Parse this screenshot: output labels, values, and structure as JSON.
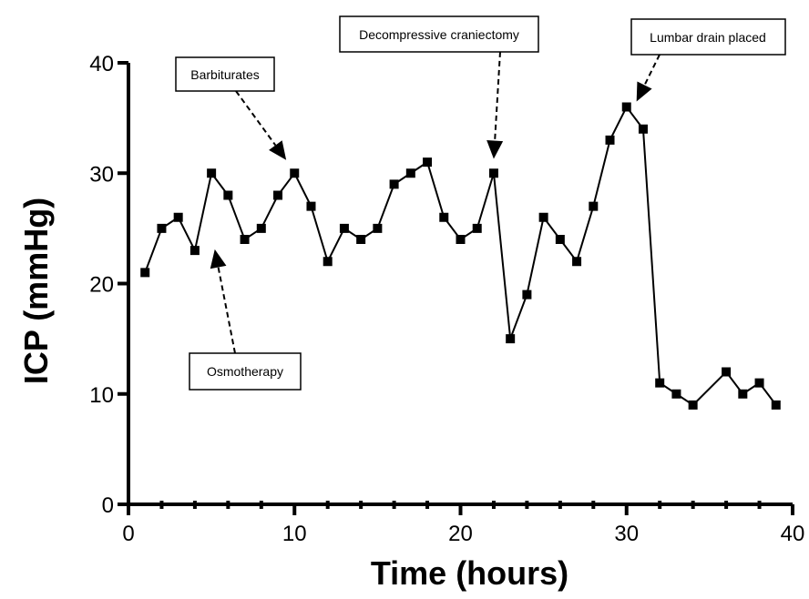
{
  "chart_data": {
    "type": "line",
    "title": "",
    "xlabel": "Time (hours)",
    "ylabel": "ICP (mmHg)",
    "xlim": [
      0,
      40
    ],
    "ylim": [
      0,
      40
    ],
    "xticks": [
      0,
      10,
      20,
      30,
      40
    ],
    "yticks": [
      0,
      10,
      20,
      30,
      40
    ],
    "grid": false,
    "colors": {
      "line": "#000000",
      "marker": "#000000"
    },
    "series": [
      {
        "name": "ICP",
        "x": [
          1,
          2,
          3,
          4,
          5,
          6,
          7,
          8,
          9,
          10,
          11,
          12,
          13,
          14,
          15,
          16,
          17,
          18,
          19,
          20,
          21,
          22,
          23,
          24,
          25,
          26,
          27,
          28,
          29,
          30,
          31,
          32,
          33,
          34,
          36,
          37,
          38,
          39
        ],
        "y": [
          21,
          25,
          26,
          23,
          30,
          28,
          24,
          25,
          28,
          30,
          27,
          22,
          25,
          24,
          25,
          29,
          30,
          31,
          26,
          24,
          25,
          30,
          15,
          19,
          26,
          24,
          22,
          27,
          33,
          36,
          34,
          11,
          10,
          9,
          12,
          10,
          11,
          9
        ]
      }
    ],
    "annotations": [
      {
        "text": "Barbiturates",
        "target": [
          9.5,
          31.2
        ]
      },
      {
        "text": "Osmotherapy",
        "target": [
          5.2,
          23.1
        ]
      },
      {
        "text": "Decompressive craniectomy",
        "target": [
          22,
          31.3
        ]
      },
      {
        "text": "Lumbar drain placed",
        "target": [
          30.6,
          36.5
        ]
      }
    ]
  }
}
